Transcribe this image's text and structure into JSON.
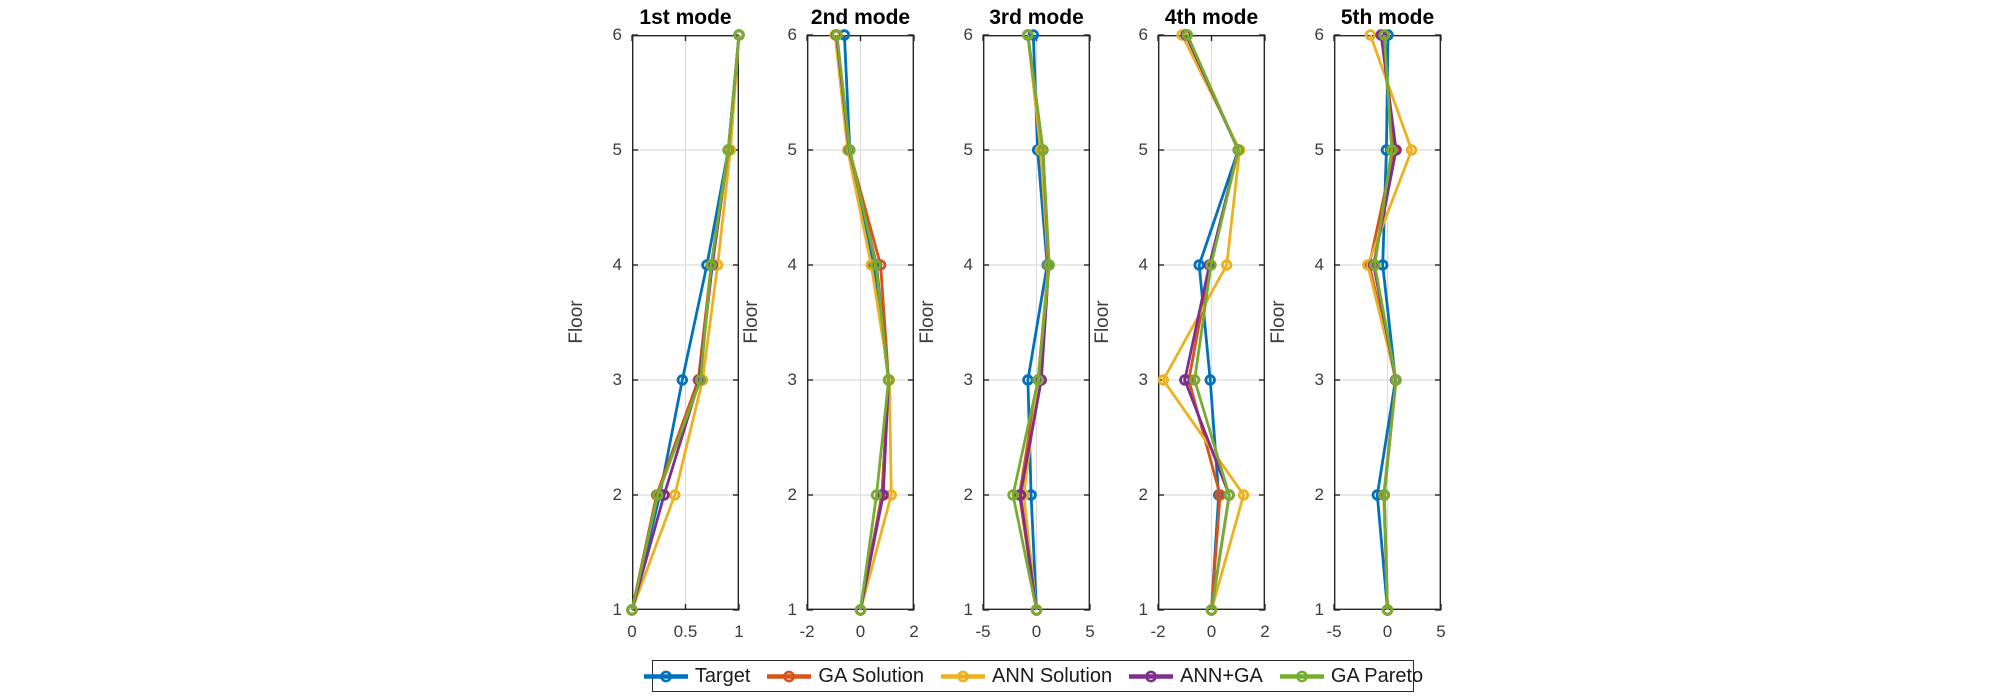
{
  "figure": {
    "background_color": "#ffffff",
    "axis_color": "#262626",
    "grid_color": "#dcdcdc",
    "tick_label_color": "#3c3c3c"
  },
  "series": [
    {
      "name": "Target",
      "color": "#0072BD"
    },
    {
      "name": "GA Solution",
      "color": "#D95319"
    },
    {
      "name": "ANN Solution",
      "color": "#EDB120"
    },
    {
      "name": "ANN+GA",
      "color": "#7E2F8E"
    },
    {
      "name": "GA Pareto",
      "color": "#77AC30"
    }
  ],
  "axes_style": {
    "ylabel": "Floor",
    "yticks": [
      1,
      2,
      3,
      4,
      5,
      6
    ],
    "ytick_labels": [
      "1",
      "2",
      "3",
      "4",
      "5",
      "6"
    ],
    "ylim": [
      1,
      6
    ],
    "grid": "on",
    "legend_position": "south-outside-horizontal"
  },
  "legend": {
    "labels": [
      "Target",
      "GA Solution",
      "ANN Solution",
      "ANN+GA",
      "GA Pareto"
    ]
  },
  "chart_data": [
    {
      "type": "line",
      "title": "1st mode",
      "ylabel": "Floor",
      "xlim": [
        0,
        1
      ],
      "xticks": [
        0,
        0.5,
        1
      ],
      "xtick_labels": [
        "0",
        "0.5",
        "1"
      ],
      "floors": [
        1,
        2,
        3,
        4,
        5,
        6
      ],
      "series": [
        {
          "name": "Target",
          "values": [
            0,
            0.26,
            0.47,
            0.7,
            0.9,
            1.0
          ]
        },
        {
          "name": "GA Solution",
          "values": [
            0,
            0.23,
            0.62,
            0.74,
            0.9,
            1.0
          ]
        },
        {
          "name": "ANN Solution",
          "values": [
            0,
            0.4,
            0.66,
            0.8,
            0.92,
            1.0
          ]
        },
        {
          "name": "ANN+GA",
          "values": [
            0,
            0.3,
            0.63,
            0.75,
            0.9,
            1.0
          ]
        },
        {
          "name": "GA Pareto",
          "values": [
            0,
            0.24,
            0.64,
            0.74,
            0.9,
            1.0
          ]
        }
      ]
    },
    {
      "type": "line",
      "title": "2nd mode",
      "ylabel": "Floor",
      "xlim": [
        -2,
        2
      ],
      "xticks": [
        -2,
        0,
        2
      ],
      "xtick_labels": [
        "-2",
        "0",
        "2"
      ],
      "floors": [
        1,
        2,
        3,
        4,
        5,
        6
      ],
      "series": [
        {
          "name": "Target",
          "values": [
            0,
            0.8,
            1.05,
            0.5,
            -0.4,
            -0.6
          ]
        },
        {
          "name": "GA Solution",
          "values": [
            0,
            0.8,
            1.05,
            0.75,
            -0.42,
            -0.9
          ]
        },
        {
          "name": "ANN Solution",
          "values": [
            0,
            1.15,
            1.08,
            0.4,
            -0.48,
            -0.95
          ]
        },
        {
          "name": "ANN+GA",
          "values": [
            0,
            0.85,
            1.05,
            0.6,
            -0.42,
            -0.9
          ]
        },
        {
          "name": "GA Pareto",
          "values": [
            0,
            0.6,
            1.05,
            0.58,
            -0.4,
            -0.88
          ]
        }
      ]
    },
    {
      "type": "line",
      "title": "3rd mode",
      "ylabel": "Floor",
      "xlim": [
        -5,
        5
      ],
      "xticks": [
        -5,
        0,
        5
      ],
      "xtick_labels": [
        "-5",
        "0",
        "5"
      ],
      "floors": [
        1,
        2,
        3,
        4,
        5,
        6
      ],
      "series": [
        {
          "name": "Target",
          "values": [
            0,
            -0.5,
            -0.8,
            1.0,
            0.1,
            -0.3
          ]
        },
        {
          "name": "GA Solution",
          "values": [
            0,
            -1.6,
            0.15,
            1.1,
            0.4,
            -0.8
          ]
        },
        {
          "name": "ANN Solution",
          "values": [
            0,
            -1.2,
            0.2,
            1.1,
            0.4,
            -0.8
          ]
        },
        {
          "name": "ANN+GA",
          "values": [
            0,
            -1.5,
            0.45,
            1.15,
            0.6,
            -0.8
          ]
        },
        {
          "name": "GA Pareto",
          "values": [
            0,
            -2.2,
            0.15,
            1.2,
            0.6,
            -0.8
          ]
        }
      ]
    },
    {
      "type": "line",
      "title": "4th mode",
      "ylabel": "Floor",
      "xlim": [
        -2,
        2
      ],
      "xticks": [
        -2,
        0,
        2
      ],
      "xtick_labels": [
        "-2",
        "0",
        "2"
      ],
      "floors": [
        1,
        2,
        3,
        4,
        5,
        6
      ],
      "series": [
        {
          "name": "Target",
          "values": [
            0,
            0.27,
            -0.05,
            -0.46,
            1.0,
            -0.95
          ]
        },
        {
          "name": "GA Solution",
          "values": [
            0,
            0.32,
            -0.85,
            -0.05,
            1.0,
            -0.92
          ]
        },
        {
          "name": "ANN Solution",
          "values": [
            0,
            1.2,
            -1.8,
            0.57,
            1.05,
            -1.1
          ]
        },
        {
          "name": "ANN+GA",
          "values": [
            0,
            0.66,
            -1.0,
            -0.08,
            1.0,
            -0.95
          ]
        },
        {
          "name": "GA Pareto",
          "values": [
            0,
            0.66,
            -0.63,
            -0.02,
            1.0,
            -0.9
          ]
        }
      ]
    },
    {
      "type": "line",
      "title": "5th mode",
      "ylabel": "Floor",
      "xlim": [
        -5,
        5
      ],
      "xticks": [
        -5,
        0,
        5
      ],
      "xtick_labels": [
        "-5",
        "0",
        "5"
      ],
      "floors": [
        1,
        2,
        3,
        4,
        5,
        6
      ],
      "series": [
        {
          "name": "Target",
          "values": [
            0,
            -0.95,
            0.75,
            -0.45,
            -0.1,
            0.05
          ]
        },
        {
          "name": "GA Solution",
          "values": [
            0,
            -0.35,
            0.78,
            -1.7,
            0.6,
            -0.5
          ]
        },
        {
          "name": "ANN Solution",
          "values": [
            0,
            -0.35,
            0.8,
            -1.85,
            2.25,
            -1.6
          ]
        },
        {
          "name": "ANN+GA",
          "values": [
            0,
            -0.3,
            0.78,
            -1.3,
            0.8,
            -0.6
          ]
        },
        {
          "name": "GA Pareto",
          "values": [
            0,
            -0.3,
            0.8,
            -1.2,
            0.4,
            -0.3
          ]
        }
      ]
    }
  ]
}
